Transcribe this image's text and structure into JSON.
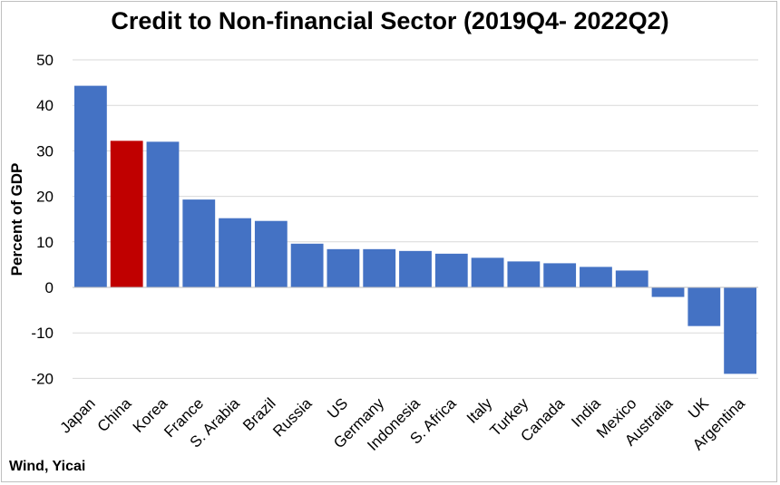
{
  "chart_data": {
    "type": "bar",
    "title": "Credit to Non-financial Sector (2019Q4- 2022Q2)",
    "ylabel": "Percent of GDP",
    "xlabel": "",
    "ylim": [
      -20,
      50
    ],
    "yticks": [
      -20,
      -10,
      0,
      10,
      20,
      30,
      40,
      50
    ],
    "grid": true,
    "categories": [
      "Japan",
      "China",
      "Korea",
      "France",
      "S. Arabia",
      "Brazil",
      "Russia",
      "US",
      "Germany",
      "Indonesia",
      "S. Africa",
      "Italy",
      "Turkey",
      "Canada",
      "India",
      "Mexico",
      "Australia",
      "UK",
      "Argentina"
    ],
    "values": [
      44.3,
      32.2,
      32.0,
      19.3,
      15.2,
      14.6,
      9.6,
      8.4,
      8.4,
      8.0,
      7.4,
      6.5,
      5.7,
      5.3,
      4.5,
      3.7,
      -2.1,
      -8.5,
      -19.0
    ],
    "highlight_category": "China",
    "colors": {
      "bar": "#4472c4",
      "highlight": "#c00000",
      "grid": "#d9d9d9"
    },
    "source": "Wind, Yicai"
  }
}
